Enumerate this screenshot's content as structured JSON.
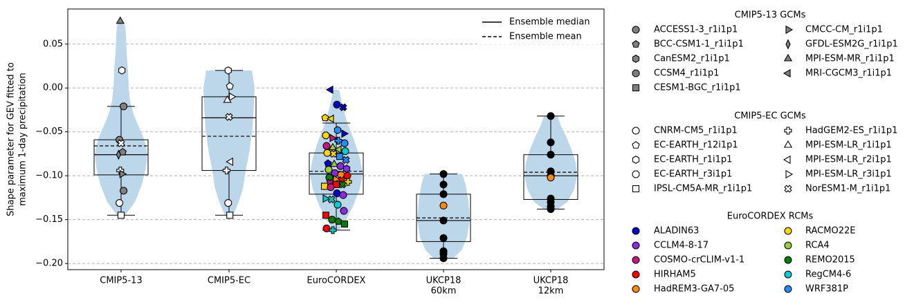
{
  "chart_data": {
    "type": "violin",
    "ylabel": "Shape parameter for GEV fitted to\nmaximum 1-day precipitation",
    "categories": [
      "CMIP5-13",
      "CMIP5-EC",
      "EuroCORDEX",
      "UKCP18\n60km",
      "UKCP18\n12km"
    ],
    "ylim": [
      -0.207,
      0.09
    ],
    "yticks": [
      0.05,
      0.0,
      -0.05,
      -0.1,
      -0.15,
      -0.2
    ],
    "ytick_labels": [
      "0.05",
      "0.00",
      "−0.05",
      "−0.10",
      "−0.15",
      "−0.20"
    ],
    "grid": "horizontal dashed",
    "legend_placement": "top-right",
    "line_legend": [
      {
        "label": "Ensemble median",
        "style": "solid"
      },
      {
        "label": "Ensemble mean",
        "style": "dashed"
      }
    ],
    "colors": {
      "violin": "#bcd6ea",
      "grid": "#b0b0b0"
    },
    "boxes": [
      {
        "category": "CMIP5-13",
        "whisker_low": -0.145,
        "q1": -0.099,
        "median": -0.076,
        "mean": -0.066,
        "q3": -0.059,
        "whisker_high": -0.021,
        "violin_min": -0.145,
        "violin_max": 0.077
      },
      {
        "category": "CMIP5-EC",
        "whisker_low": -0.145,
        "q1": -0.094,
        "median": -0.034,
        "mean": -0.055,
        "q3": -0.01,
        "whisker_high": 0.02,
        "violin_min": -0.145,
        "violin_max": 0.02
      },
      {
        "category": "EuroCORDEX",
        "whisker_low": -0.162,
        "q1": -0.121,
        "median": -0.098,
        "mean": -0.095,
        "q3": -0.074,
        "whisker_high": -0.04,
        "violin_min": -0.162,
        "violin_max": -0.002
      },
      {
        "category": "UKCP18 60km",
        "whisker_low": -0.194,
        "q1": -0.175,
        "median": -0.151,
        "mean": -0.148,
        "q3": -0.121,
        "whisker_high": -0.098,
        "violin_min": -0.194,
        "violin_max": -0.098
      },
      {
        "category": "UKCP18 12km",
        "whisker_low": -0.138,
        "q1": -0.127,
        "median": -0.1,
        "mean": -0.096,
        "q3": -0.076,
        "whisker_high": -0.032,
        "violin_min": -0.138,
        "violin_max": -0.032
      }
    ],
    "legend_groups": [
      {
        "title": "CMIP5-13 GCMs",
        "entries": [
          {
            "label": "ACCESS1-3_r1i1p1",
            "marker": "circle",
            "color": "#808080"
          },
          {
            "label": "BCC-CSM1-1_r1i1p1",
            "marker": "pentagon",
            "color": "#808080"
          },
          {
            "label": "CanESM2_r1i1p1",
            "marker": "hexagon",
            "color": "#808080"
          },
          {
            "label": "CCSM4_r1i1p1",
            "marker": "octagon",
            "color": "#808080"
          },
          {
            "label": "CESM1-BGC_r1i1p1",
            "marker": "square",
            "color": "#808080"
          },
          {
            "label": "CMCC-CM_r1i1p1",
            "marker": "triangle-right",
            "color": "#808080"
          },
          {
            "label": "GFDL-ESM2G_r1i1p1",
            "marker": "thin-diamond",
            "color": "#808080"
          },
          {
            "label": "MPI-ESM-MR_r1i1p1",
            "marker": "triangle-up",
            "color": "#808080"
          },
          {
            "label": "MRI-CGCM3_r1i1p1",
            "marker": "triangle-left",
            "color": "#808080"
          }
        ]
      },
      {
        "title": "CMIP5-EC GCMs",
        "entries": [
          {
            "label": "CNRM-CM5_r1i1p1",
            "marker": "circle",
            "color": "#ffffff"
          },
          {
            "label": "EC-EARTH_r12i1p1",
            "marker": "pentagon",
            "color": "#ffffff"
          },
          {
            "label": "EC-EARTH_r1i1p1",
            "marker": "hexagon",
            "color": "#ffffff"
          },
          {
            "label": "EC-EARTH_r3i1p1",
            "marker": "octagon",
            "color": "#ffffff"
          },
          {
            "label": "IPSL-CM5A-MR_r1i1p1",
            "marker": "square",
            "color": "#ffffff"
          },
          {
            "label": "HadGEM2-ES_r1i1p1",
            "marker": "plus",
            "color": "#ffffff"
          },
          {
            "label": "MPI-ESM-LR_r1i1p1",
            "marker": "triangle-up",
            "color": "#ffffff"
          },
          {
            "label": "MPI-ESM-LR_r2i1p1",
            "marker": "triangle-left",
            "color": "#ffffff"
          },
          {
            "label": "MPI-ESM-LR_r3i1p1",
            "marker": "triangle-right",
            "color": "#ffffff"
          },
          {
            "label": "NorESM1-M_r1i1p1",
            "marker": "cross",
            "color": "#ffffff"
          }
        ]
      },
      {
        "title": "EuroCORDEX RCMs",
        "entries": [
          {
            "label": "ALADIN63",
            "marker": "circle",
            "color": "#0000cd"
          },
          {
            "label": "CCLM4-8-17",
            "marker": "circle",
            "color": "#8a2be2"
          },
          {
            "label": "COSMO-crCLIM-v1-1",
            "marker": "circle",
            "color": "#c71585"
          },
          {
            "label": "HIRHAM5",
            "marker": "circle",
            "color": "#ff0000"
          },
          {
            "label": "HadREM3-GA7-05",
            "marker": "circle",
            "color": "#ff8c00"
          },
          {
            "label": "RACMO22E",
            "marker": "circle",
            "color": "#ffd700"
          },
          {
            "label": "RCA4",
            "marker": "circle",
            "color": "#9acd32"
          },
          {
            "label": "REMO2015",
            "marker": "circle",
            "color": "#008000"
          },
          {
            "label": "RegCM4-6",
            "marker": "circle",
            "color": "#00ced1"
          },
          {
            "label": "WRF381P",
            "marker": "circle",
            "color": "#1e90ff"
          }
        ]
      }
    ],
    "points": [
      {
        "category": "CMIP5-13",
        "y": 0.076,
        "marker": "triangle-up",
        "color": "#808080"
      },
      {
        "category": "CMIP5-13",
        "y": 0.02,
        "marker": "hexagon",
        "color": "#ffffff"
      },
      {
        "category": "CMIP5-13",
        "y": -0.021,
        "marker": "octagon",
        "color": "#808080"
      },
      {
        "category": "CMIP5-13",
        "y": -0.059,
        "marker": "circle",
        "color": "#808080"
      },
      {
        "category": "CMIP5-13",
        "y": -0.063,
        "marker": "cross",
        "color": "#ffffff"
      },
      {
        "category": "CMIP5-13",
        "y": -0.073,
        "marker": "pentagon",
        "color": "#808080"
      },
      {
        "category": "CMIP5-13",
        "y": -0.076,
        "marker": "thin-diamond",
        "color": "#808080"
      },
      {
        "category": "CMIP5-13",
        "y": -0.094,
        "marker": "plus",
        "color": "#ffffff"
      },
      {
        "category": "CMIP5-13",
        "y": -0.098,
        "marker": "triangle-right",
        "color": "#808080"
      },
      {
        "category": "CMIP5-13",
        "y": -0.117,
        "marker": "circle",
        "color": "#808080"
      },
      {
        "category": "CMIP5-13",
        "y": -0.131,
        "marker": "circle",
        "color": "#ffffff"
      },
      {
        "category": "CMIP5-13",
        "y": -0.145,
        "marker": "square",
        "color": "#ffffff"
      },
      {
        "category": "CMIP5-EC",
        "y": 0.02,
        "marker": "hexagon",
        "color": "#ffffff"
      },
      {
        "category": "CMIP5-EC",
        "y": 0.002,
        "marker": "pentagon",
        "color": "#ffffff"
      },
      {
        "category": "CMIP5-EC",
        "y": -0.01,
        "marker": "triangle-right",
        "color": "#ffffff"
      },
      {
        "category": "CMIP5-EC",
        "y": -0.014,
        "marker": "triangle-up",
        "color": "#ffffff"
      },
      {
        "category": "CMIP5-EC",
        "y": -0.033,
        "marker": "cross",
        "color": "#ffffff"
      },
      {
        "category": "CMIP5-EC",
        "y": -0.084,
        "marker": "triangle-left",
        "color": "#ffffff"
      },
      {
        "category": "CMIP5-EC",
        "y": -0.094,
        "marker": "plus",
        "color": "#ffffff"
      },
      {
        "category": "CMIP5-EC",
        "y": -0.131,
        "marker": "circle",
        "color": "#ffffff"
      },
      {
        "category": "CMIP5-EC",
        "y": -0.145,
        "marker": "square",
        "color": "#ffffff"
      },
      {
        "category": "EuroCORDEX",
        "y": -0.002,
        "marker": "triangle-left",
        "color": "#0000cd"
      },
      {
        "category": "EuroCORDEX",
        "y": -0.019,
        "marker": "circle",
        "color": "#0000cd"
      },
      {
        "category": "EuroCORDEX",
        "y": -0.022,
        "marker": "cross",
        "color": "#0000cd"
      },
      {
        "category": "EuroCORDEX",
        "y": -0.034,
        "marker": "pentagon",
        "color": "#ffd700"
      },
      {
        "category": "EuroCORDEX",
        "y": -0.035,
        "marker": "triangle-left",
        "color": "#ffd700"
      },
      {
        "category": "EuroCORDEX",
        "y": -0.048,
        "marker": "hexagon",
        "color": "#1e90ff"
      },
      {
        "category": "EuroCORDEX",
        "y": -0.052,
        "marker": "triangle-right",
        "color": "#0000cd"
      },
      {
        "category": "EuroCORDEX",
        "y": -0.054,
        "marker": "octagon",
        "color": "#ffd700"
      },
      {
        "category": "EuroCORDEX",
        "y": -0.057,
        "marker": "triangle-right",
        "color": "#c71585"
      },
      {
        "category": "EuroCORDEX",
        "y": -0.06,
        "marker": "plus",
        "color": "#1e90ff"
      },
      {
        "category": "EuroCORDEX",
        "y": -0.063,
        "marker": "circle",
        "color": "#1e90ff"
      },
      {
        "category": "EuroCORDEX",
        "y": -0.066,
        "marker": "circle",
        "color": "#c71585"
      },
      {
        "category": "EuroCORDEX",
        "y": -0.068,
        "marker": "triangle-up",
        "color": "#9acd32"
      },
      {
        "category": "EuroCORDEX",
        "y": -0.07,
        "marker": "triangle-left",
        "color": "#9acd32"
      },
      {
        "category": "EuroCORDEX",
        "y": -0.072,
        "marker": "circle",
        "color": "#00ced1"
      },
      {
        "category": "EuroCORDEX",
        "y": -0.074,
        "marker": "circle",
        "color": "#ffd700"
      },
      {
        "category": "EuroCORDEX",
        "y": -0.075,
        "marker": "cross",
        "color": "#ffd700"
      },
      {
        "category": "EuroCORDEX",
        "y": -0.078,
        "marker": "square",
        "color": "#1e90ff"
      },
      {
        "category": "EuroCORDEX",
        "y": -0.082,
        "marker": "cross",
        "color": "#1e90ff"
      },
      {
        "category": "EuroCORDEX",
        "y": -0.086,
        "marker": "pentagon",
        "color": "#0000cd"
      },
      {
        "category": "EuroCORDEX",
        "y": -0.087,
        "marker": "triangle-up",
        "color": "#9acd32"
      },
      {
        "category": "EuroCORDEX",
        "y": -0.089,
        "marker": "circle",
        "color": "#8a2be2"
      },
      {
        "category": "EuroCORDEX",
        "y": -0.092,
        "marker": "hexagon",
        "color": "#8a2be2"
      },
      {
        "category": "EuroCORDEX",
        "y": -0.093,
        "marker": "circle",
        "color": "#9acd32"
      },
      {
        "category": "EuroCORDEX",
        "y": -0.097,
        "marker": "octagon",
        "color": "#8a2be2"
      },
      {
        "category": "EuroCORDEX",
        "y": -0.099,
        "marker": "circle",
        "color": "#ff8c00"
      },
      {
        "category": "EuroCORDEX",
        "y": -0.1,
        "marker": "circle",
        "color": "#ff0000"
      },
      {
        "category": "EuroCORDEX",
        "y": -0.102,
        "marker": "circle",
        "color": "#008000"
      },
      {
        "category": "EuroCORDEX",
        "y": -0.104,
        "marker": "triangle-right",
        "color": "#ff8c00"
      },
      {
        "category": "EuroCORDEX",
        "y": -0.105,
        "marker": "cross",
        "color": "#ff0000"
      },
      {
        "category": "EuroCORDEX",
        "y": -0.107,
        "marker": "plus",
        "color": "#ffd700"
      },
      {
        "category": "EuroCORDEX",
        "y": -0.108,
        "marker": "cross",
        "color": "#c71585"
      },
      {
        "category": "EuroCORDEX",
        "y": -0.11,
        "marker": "square",
        "color": "#ff0000"
      },
      {
        "category": "EuroCORDEX",
        "y": -0.11,
        "marker": "cross",
        "color": "#008000"
      },
      {
        "category": "EuroCORDEX",
        "y": -0.112,
        "marker": "square",
        "color": "#ffd700"
      },
      {
        "category": "EuroCORDEX",
        "y": -0.113,
        "marker": "circle",
        "color": "#c71585"
      },
      {
        "category": "EuroCORDEX",
        "y": -0.12,
        "marker": "circle",
        "color": "#0000cd"
      },
      {
        "category": "EuroCORDEX",
        "y": -0.122,
        "marker": "circle",
        "color": "#8a2be2"
      },
      {
        "category": "EuroCORDEX",
        "y": -0.126,
        "marker": "triangle-right",
        "color": "#00ced1"
      },
      {
        "category": "EuroCORDEX",
        "y": -0.127,
        "marker": "cross",
        "color": "#00ced1"
      },
      {
        "category": "EuroCORDEX",
        "y": -0.133,
        "marker": "circle",
        "color": "#00ced1"
      },
      {
        "category": "EuroCORDEX",
        "y": -0.14,
        "marker": "circle",
        "color": "#8a2be2"
      },
      {
        "category": "EuroCORDEX",
        "y": -0.145,
        "marker": "square",
        "color": "#ff0000"
      },
      {
        "category": "EuroCORDEX",
        "y": -0.15,
        "marker": "circle",
        "color": "#008000"
      },
      {
        "category": "EuroCORDEX",
        "y": -0.152,
        "marker": "pentagon",
        "color": "#008000"
      },
      {
        "category": "EuroCORDEX",
        "y": -0.155,
        "marker": "square",
        "color": "#008000"
      },
      {
        "category": "EuroCORDEX",
        "y": -0.16,
        "marker": "circle",
        "color": "#ff0000"
      },
      {
        "category": "EuroCORDEX",
        "y": -0.162,
        "marker": "plus",
        "color": "#00ced1"
      },
      {
        "category": "UKCP18 60km",
        "y": -0.098,
        "marker": "circle",
        "color": "#000000"
      },
      {
        "category": "UKCP18 60km",
        "y": -0.11,
        "marker": "circle",
        "color": "#000000"
      },
      {
        "category": "UKCP18 60km",
        "y": -0.121,
        "marker": "circle",
        "color": "#000000"
      },
      {
        "category": "UKCP18 60km",
        "y": -0.134,
        "marker": "circle",
        "color": "#ff8c00"
      },
      {
        "category": "UKCP18 60km",
        "y": -0.151,
        "marker": "circle",
        "color": "#000000"
      },
      {
        "category": "UKCP18 60km",
        "y": -0.171,
        "marker": "circle",
        "color": "#000000"
      },
      {
        "category": "UKCP18 60km",
        "y": -0.186,
        "marker": "circle",
        "color": "#000000"
      },
      {
        "category": "UKCP18 60km",
        "y": -0.189,
        "marker": "circle",
        "color": "#000000"
      },
      {
        "category": "UKCP18 60km",
        "y": -0.194,
        "marker": "circle",
        "color": "#000000"
      },
      {
        "category": "UKCP18 12km",
        "y": -0.032,
        "marker": "circle",
        "color": "#000000"
      },
      {
        "category": "UKCP18 12km",
        "y": -0.062,
        "marker": "circle",
        "color": "#000000"
      },
      {
        "category": "UKCP18 12km",
        "y": -0.076,
        "marker": "circle",
        "color": "#000000"
      },
      {
        "category": "UKCP18 12km",
        "y": -0.095,
        "marker": "circle",
        "color": "#000000"
      },
      {
        "category": "UKCP18 12km",
        "y": -0.1,
        "marker": "circle",
        "color": "#000000"
      },
      {
        "category": "UKCP18 12km",
        "y": -0.102,
        "marker": "circle",
        "color": "#ff8c00"
      },
      {
        "category": "UKCP18 12km",
        "y": -0.126,
        "marker": "circle",
        "color": "#000000"
      },
      {
        "category": "UKCP18 12km",
        "y": -0.13,
        "marker": "circle",
        "color": "#000000"
      },
      {
        "category": "UKCP18 12km",
        "y": -0.135,
        "marker": "circle",
        "color": "#000000"
      },
      {
        "category": "UKCP18 12km",
        "y": -0.138,
        "marker": "circle",
        "color": "#000000"
      }
    ]
  }
}
